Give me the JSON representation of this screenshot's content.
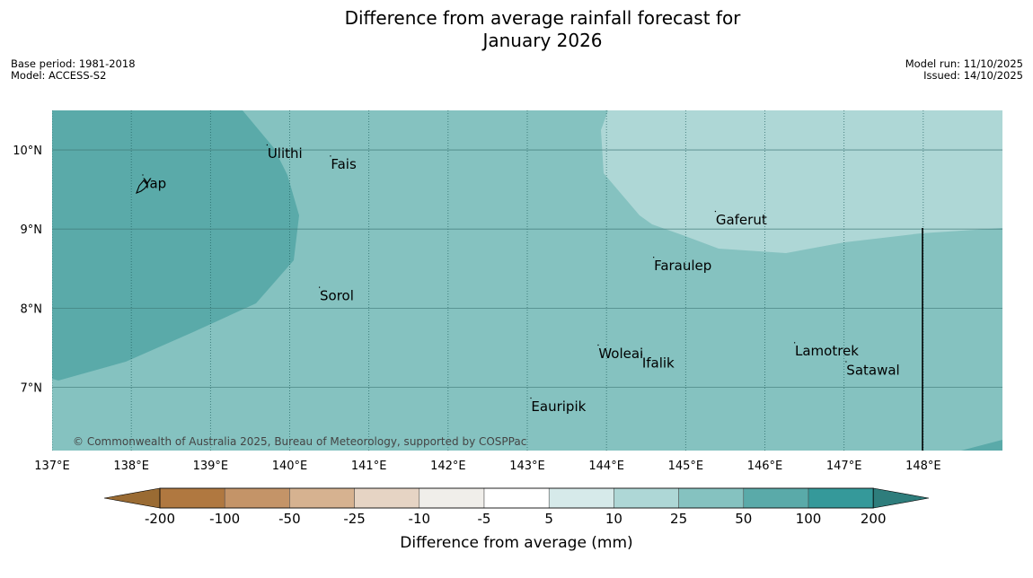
{
  "title_line1": "Difference from average rainfall forecast for",
  "title_line2": "January 2026",
  "meta_left": {
    "base_period": "Base period: 1981-2018",
    "model": "Model: ACCESS-S2"
  },
  "meta_right": {
    "model_run": "Model run: 11/10/2025",
    "issued": "Issued: 14/10/2025"
  },
  "map": {
    "lon_range": [
      137,
      149
    ],
    "lat_range": [
      6.2,
      10.5
    ],
    "lon_ticks": [
      "137°E",
      "138°E",
      "139°E",
      "140°E",
      "141°E",
      "142°E",
      "143°E",
      "144°E",
      "145°E",
      "146°E",
      "147°E",
      "148°E"
    ],
    "lon_values": [
      137,
      138,
      139,
      140,
      141,
      142,
      143,
      144,
      145,
      146,
      147,
      148
    ],
    "lat_ticks": [
      "10°N",
      "9°N",
      "8°N",
      "7°N"
    ],
    "lat_values": [
      10,
      9,
      8,
      7
    ],
    "copyright": "© Commonwealth of Australia 2025, Bureau of Meteorology, supported by COSPPac",
    "places": [
      {
        "name": "Yap",
        "lon": 138.15,
        "lat": 9.52
      },
      {
        "name": "Ulithi",
        "lon": 139.72,
        "lat": 9.9
      },
      {
        "name": "Fais",
        "lon": 140.52,
        "lat": 9.76
      },
      {
        "name": "Sorol",
        "lon": 140.38,
        "lat": 8.1
      },
      {
        "name": "Gaferut",
        "lon": 145.38,
        "lat": 9.06
      },
      {
        "name": "Faraulep",
        "lon": 144.6,
        "lat": 8.48
      },
      {
        "name": "Woleai",
        "lon": 143.9,
        "lat": 7.37
      },
      {
        "name": "Ifalik",
        "lon": 144.45,
        "lat": 7.25
      },
      {
        "name": "Lamotrek",
        "lon": 146.38,
        "lat": 7.4
      },
      {
        "name": "Satawal",
        "lon": 147.03,
        "lat": 7.16
      },
      {
        "name": "Eauripik",
        "lon": 143.05,
        "lat": 6.7
      }
    ],
    "colors": {
      "class_50_100": "#5aaaa9",
      "class_25_50": "#85c2c0",
      "class_10_25": "#aed7d6"
    }
  },
  "colorbar": {
    "title": "Difference from average (mm)",
    "labels": [
      "-200",
      "-100",
      "-50",
      "-25",
      "-10",
      "-5",
      "5",
      "10",
      "25",
      "50",
      "100",
      "200"
    ],
    "colors": [
      "#b07840",
      "#c49468",
      "#d6b290",
      "#e6d4c4",
      "#f0eeea",
      "#ffffff",
      "#d6eaea",
      "#aed7d6",
      "#85c2c0",
      "#5aaaa9",
      "#35999a"
    ],
    "low_extend_color": "#9a6b33",
    "high_extend_color": "#2e7d7c"
  }
}
